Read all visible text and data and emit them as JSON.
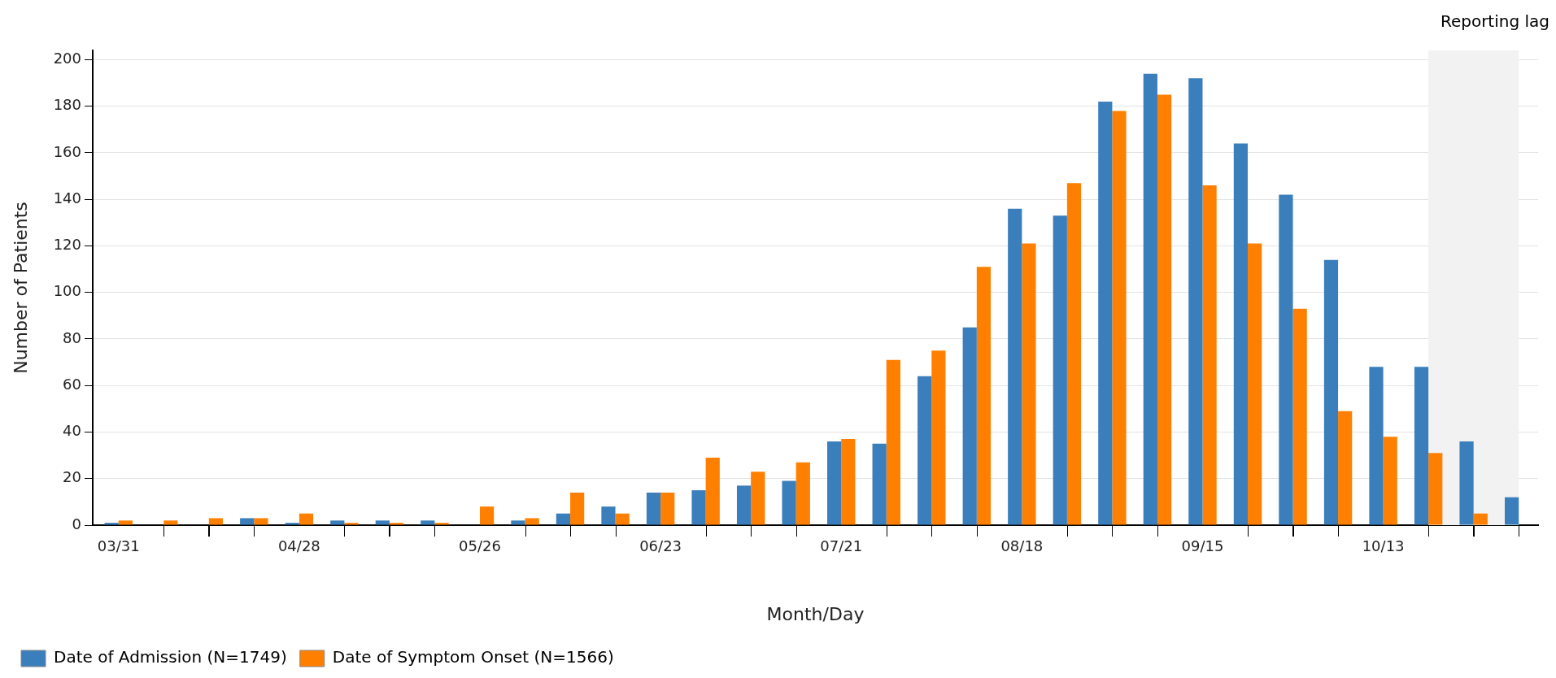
{
  "chart_data": {
    "type": "bar",
    "xlabel": "Month/Day",
    "ylabel": "Number of Patients",
    "x": [
      "--03-31",
      "--04-07",
      "--04-14",
      "--04-21",
      "--04-28",
      "--05-05",
      "--05-12",
      "--05-19",
      "--05-26",
      "--06-02",
      "--06-09",
      "--06-16",
      "--06-23",
      "--06-30",
      "--07-07",
      "--07-14",
      "--07-21",
      "--07-28",
      "--08-04",
      "--08-11",
      "--08-18",
      "--08-25",
      "--09-01",
      "--09-08",
      "--09-15",
      "--09-22",
      "--09-29",
      "--10-06",
      "--10-13",
      "--10-20",
      "--10-27",
      "--11-03"
    ],
    "series": [
      {
        "name": "Date of Admission (N=1749)",
        "color": "#3a7ebc",
        "values": [
          1,
          0,
          0,
          3,
          1,
          2,
          2,
          2,
          0,
          2,
          5,
          8,
          14,
          15,
          17,
          19,
          36,
          35,
          64,
          85,
          136,
          133,
          182,
          194,
          192,
          164,
          142,
          114,
          68,
          68,
          36,
          12
        ]
      },
      {
        "name": "Date of Symptom Onset (N=1566)",
        "color": "#ff8000",
        "values": [
          2,
          2,
          3,
          3,
          5,
          1,
          1,
          1,
          8,
          3,
          14,
          5,
          14,
          29,
          23,
          27,
          37,
          71,
          75,
          111,
          121,
          147,
          178,
          185,
          146,
          121,
          93,
          49,
          38,
          31,
          5,
          0
        ]
      }
    ],
    "xlim": [
      "--03-27",
      "--11-06"
    ],
    "xticks": [
      {
        "value": "--03-31",
        "label": "03/31"
      },
      {
        "value": "--04-28",
        "label": "04/28"
      },
      {
        "value": "--05-26",
        "label": "05/26"
      },
      {
        "value": "--06-23",
        "label": "06/23"
      },
      {
        "value": "--07-21",
        "label": "07/21"
      },
      {
        "value": "--08-18",
        "label": "08/18"
      },
      {
        "value": "--09-15",
        "label": "09/15"
      },
      {
        "value": "--10-13",
        "label": "10/13"
      }
    ],
    "ylim": [
      0,
      204
    ],
    "yticks": [
      0,
      20,
      40,
      60,
      80,
      100,
      120,
      140,
      160,
      180,
      200
    ],
    "grid": "y",
    "legend": "bottom left",
    "bands": [
      {
        "axis": "x",
        "from": "--10-20",
        "to": "--11-03",
        "label": "Reporting lag",
        "color": "#f2f2f2"
      }
    ]
  }
}
